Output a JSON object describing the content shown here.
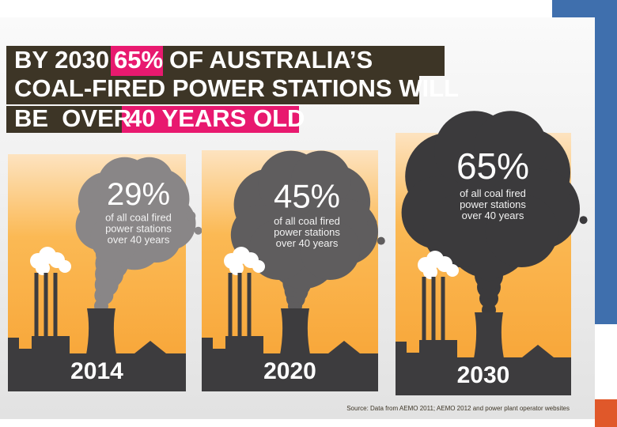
{
  "header": {
    "line1": {
      "before": "BY 2030",
      "highlight": "65%",
      "after": "OF AUSTRALIA’S"
    },
    "line2": "COAL-FIRED POWER STATIONS WILL",
    "line3": {
      "before": "BE  OVER",
      "highlight": "40 YEARS OLD"
    }
  },
  "panels": [
    {
      "percent": "29%",
      "caption": [
        "of all coal fired",
        "power stations",
        "over 40 years"
      ],
      "year": "2014"
    },
    {
      "percent": "45%",
      "caption": [
        "of all coal fired",
        "power stations",
        "over 40 years"
      ],
      "year": "2020"
    },
    {
      "percent": "65%",
      "caption": [
        "of all coal fired",
        "power stations",
        "over 40 years"
      ],
      "year": "2030"
    }
  ],
  "source": "Source: Data from AEMO 2011; AEMO 2012 and power plant operator websites"
}
